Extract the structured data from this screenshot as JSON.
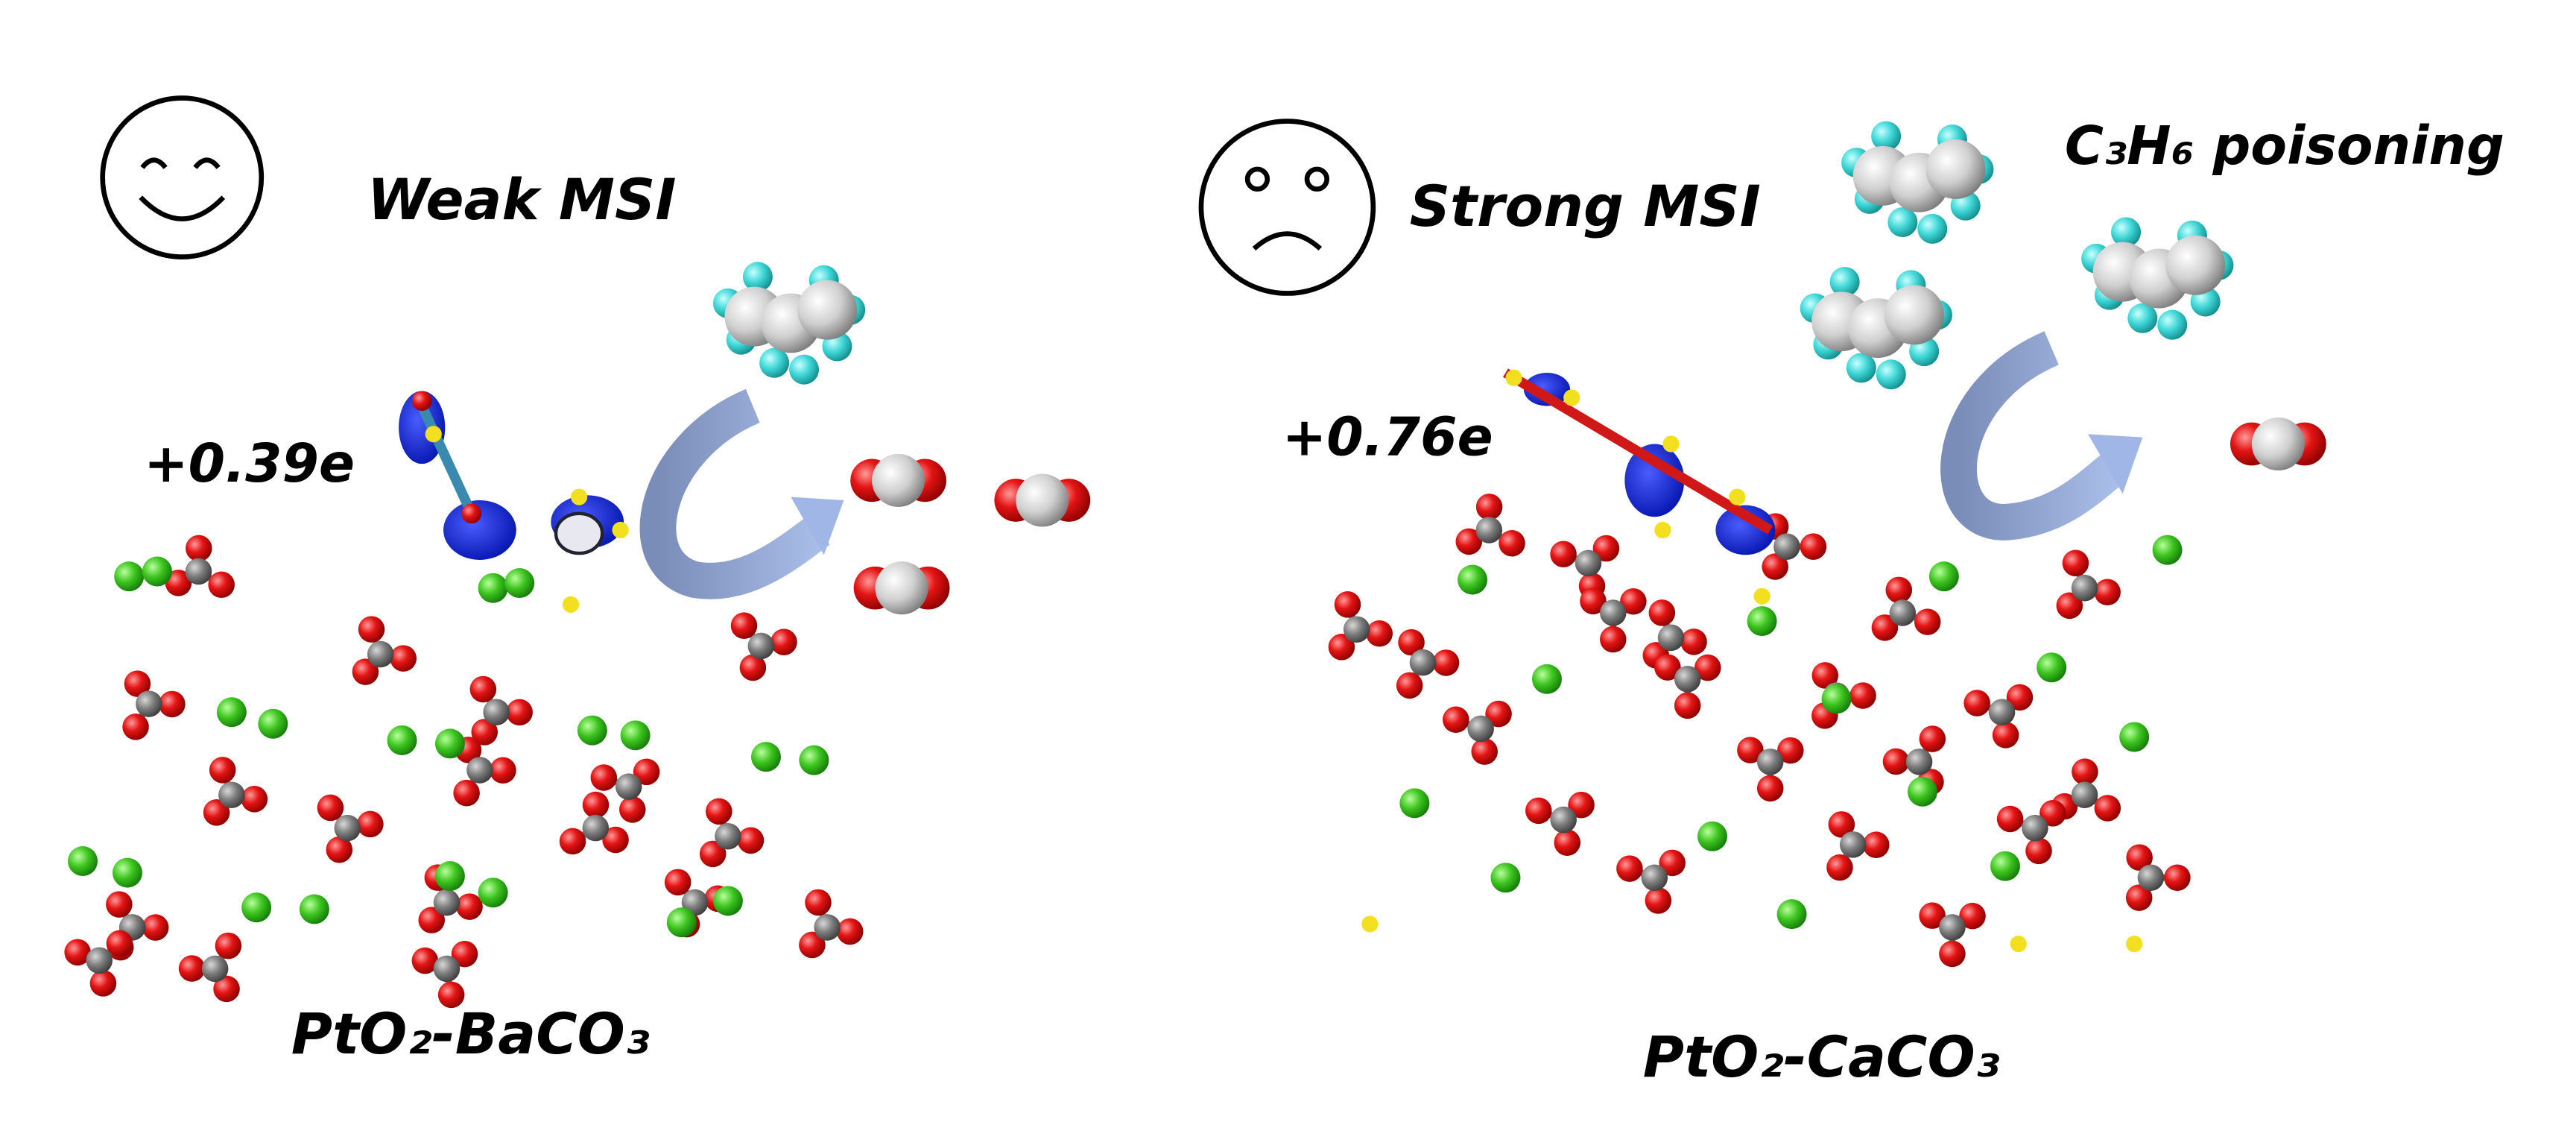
{
  "panels": [
    {
      "title": "Weak MSI",
      "charge": "+0.39e",
      "label": "PtO₂-BaCO₃"
    },
    {
      "title": "Strong MSI",
      "charge": "+0.76e",
      "label": "PtO₂-CaCO₃",
      "annotation": "C₃H₆ poisoning"
    }
  ]
}
